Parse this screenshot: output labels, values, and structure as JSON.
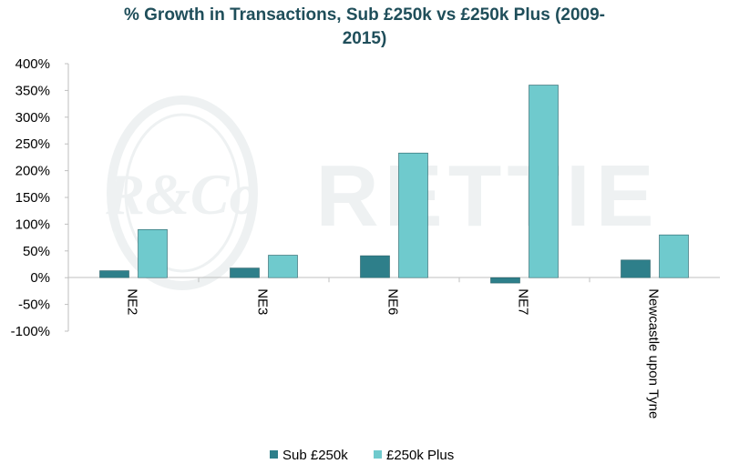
{
  "title_lines": [
    "% Growth in Transactions, Sub £250k vs £250k Plus (2009-",
    "2015)"
  ],
  "watermark": {
    "monogram": "R&Co",
    "text": "RETTIE"
  },
  "chart_data": {
    "type": "bar",
    "title": "% Growth in Transactions, Sub £250k vs £250k Plus (2009-2015)",
    "categories": [
      "NE2",
      "NE3",
      "NE6",
      "NE7",
      "Newcastle upon Tyne"
    ],
    "series": [
      {
        "name": "Sub £250k",
        "values": [
          13,
          18,
          41,
          -10,
          33
        ],
        "color": "#2e7f8a"
      },
      {
        "name": "£250k Plus",
        "values": [
          90,
          42,
          233,
          360,
          80
        ],
        "color": "#6fcacd"
      }
    ],
    "ylim": [
      -100,
      400
    ],
    "yticks": [
      -100,
      -50,
      0,
      50,
      100,
      150,
      200,
      250,
      300,
      350,
      400
    ],
    "ytick_labels": [
      "-100%",
      "-50%",
      "0%",
      "50%",
      "100%",
      "150%",
      "200%",
      "250%",
      "300%",
      "350%",
      "400%"
    ],
    "grid": false,
    "legend": "bottom"
  }
}
